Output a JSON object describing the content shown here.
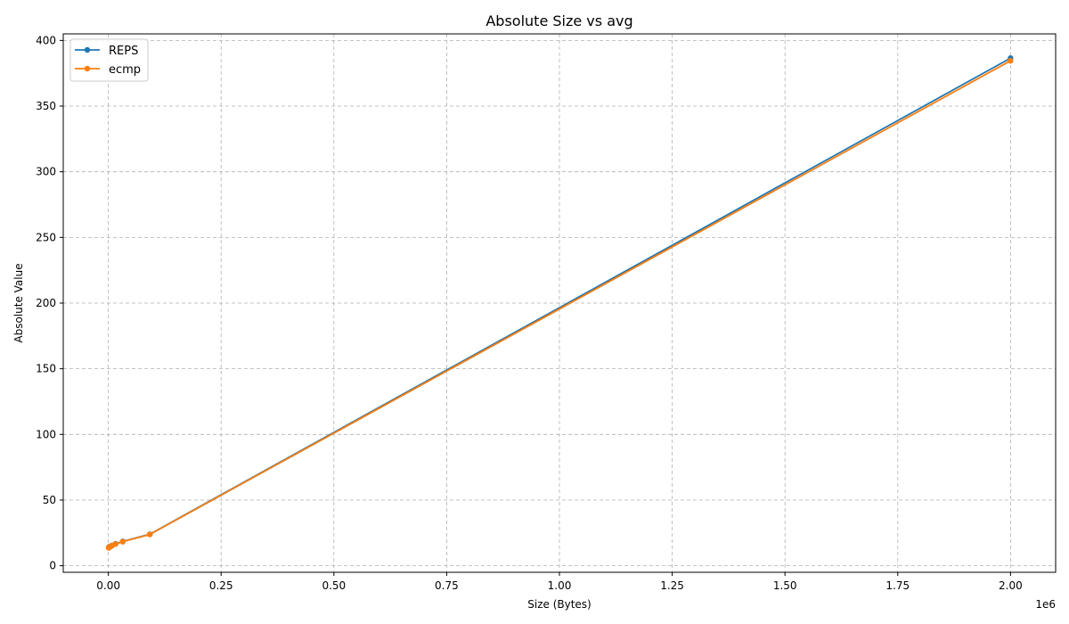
{
  "chart_data": {
    "type": "line",
    "title": "Absolute Size vs avg",
    "xlabel": "Size (Bytes)",
    "ylabel": "Absolute Value",
    "x_offset_label": "1e6",
    "x_scale": 1000000,
    "xlim": [
      -100000,
      2100000
    ],
    "ylim": [
      -5,
      405
    ],
    "xticks": [
      0,
      250000,
      500000,
      750000,
      1000000,
      1250000,
      1500000,
      1750000,
      2000000
    ],
    "xtick_labels": [
      "0.00",
      "0.25",
      "0.50",
      "0.75",
      "1.00",
      "1.25",
      "1.50",
      "1.75",
      "2.00"
    ],
    "yticks": [
      0,
      50,
      100,
      150,
      200,
      250,
      300,
      350,
      400
    ],
    "ytick_labels": [
      "0",
      "50",
      "100",
      "150",
      "200",
      "250",
      "300",
      "350",
      "400"
    ],
    "grid": true,
    "legend_position": "top-left",
    "series": [
      {
        "name": "REPS",
        "color": "#1f77b4",
        "x": [
          1000,
          2000,
          4000,
          8000,
          16000,
          32000,
          92000,
          2000000
        ],
        "y": [
          14,
          14.3,
          14.6,
          15.4,
          16.7,
          18.5,
          24.0,
          386.5
        ]
      },
      {
        "name": "ecmp",
        "color": "#ff7f0e",
        "x": [
          1000,
          2000,
          4000,
          8000,
          16000,
          32000,
          92000,
          2000000
        ],
        "y": [
          13.6,
          14.0,
          14.4,
          15.2,
          16.5,
          18.3,
          23.8,
          384.5
        ]
      }
    ]
  }
}
